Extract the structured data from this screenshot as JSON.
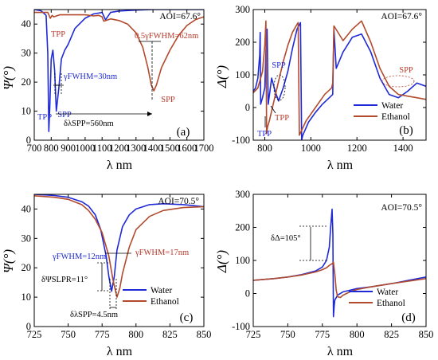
{
  "legend": {
    "water": "Water",
    "ethanol": "Ethanol"
  },
  "colors": {
    "water": "#1f2ad6",
    "ethanol": "#b24a2e",
    "annotation_red": "#b8392a",
    "annotation_blue": "#1f2ad6"
  },
  "chart_data": [
    {
      "id": "a",
      "type": "line",
      "panel_label": "(a)",
      "aoi": "AOI=67.6°",
      "ylabel": "Ψ(°)",
      "xlabel": "λ nm",
      "xlim": [
        700,
        1700
      ],
      "ylim": [
        0,
        45
      ],
      "xticks": [
        700,
        800,
        900,
        1000,
        1100,
        1200,
        1300,
        1400,
        1500,
        1600,
        1700
      ],
      "yticks": [
        0,
        10,
        20,
        30,
        40
      ],
      "annotations": {
        "tpp_top": "TPP",
        "tpp_bottom": "TPP",
        "spp_bottom": "SPP",
        "spp_right": "SPP",
        "fwhm_water": "γFWHM=30nm",
        "fwhm_ethanol": "0.5γFWHM=62nm",
        "delta_lambda": "δλSPP=560nm"
      },
      "series": [
        {
          "name": "Water",
          "x": [
            700,
            740,
            770,
            780,
            786,
            792,
            800,
            810,
            820,
            830,
            845,
            860,
            880,
            900,
            940,
            1000,
            1050,
            1100,
            1120,
            1150,
            1200,
            1300,
            1400,
            1500,
            1600,
            1700
          ],
          "y": [
            45,
            44.6,
            43,
            30,
            3,
            12,
            28,
            31,
            24,
            10,
            18,
            28,
            31,
            33,
            38.5,
            42,
            43.5,
            44,
            41.5,
            44,
            44.5,
            44.8,
            45,
            45,
            45,
            45
          ]
        },
        {
          "name": "Ethanol",
          "x": [
            700,
            780,
            795,
            805,
            815,
            850,
            900,
            1000,
            1050,
            1080,
            1100,
            1110,
            1150,
            1200,
            1250,
            1300,
            1340,
            1370,
            1390,
            1405,
            1420,
            1450,
            1500,
            1550,
            1600,
            1650,
            1700
          ],
          "y": [
            44,
            44,
            42,
            43,
            42.5,
            43.2,
            43.2,
            43.2,
            42.8,
            43,
            42.5,
            41,
            41.8,
            41.2,
            40,
            37,
            32,
            25,
            19,
            17,
            19,
            25,
            31,
            36,
            39.5,
            41.5,
            42.5
          ]
        }
      ]
    },
    {
      "id": "b",
      "type": "line",
      "panel_label": "(b)",
      "aoi": "AOI=67.6°",
      "ylabel": "Δ(°)",
      "xlabel": "λ nm",
      "xlim": [
        750,
        1500
      ],
      "ylim": [
        -100,
        300
      ],
      "xticks": [
        800,
        1000,
        1200,
        1400
      ],
      "yticks": [
        -100,
        0,
        100,
        200,
        300
      ],
      "annotations": {
        "tpp": "TPP",
        "spp_b": "SPP",
        "tpp_red": "TPP",
        "spp_red": "SPP"
      },
      "series": [
        {
          "name": "Water",
          "x": [
            750,
            760,
            770,
            778,
            780,
            782,
            790,
            800,
            805,
            810,
            815,
            830,
            845,
            860,
            880,
            900,
            920,
            940,
            955,
            960,
            965,
            990,
            1020,
            1050,
            1080,
            1095,
            1100,
            1110,
            1140,
            1180,
            1220,
            1260,
            1300,
            1340,
            1380,
            1420,
            1460,
            1500
          ],
          "y": [
            50,
            60,
            90,
            160,
            230,
            10,
            30,
            60,
            170,
            240,
            10,
            90,
            50,
            20,
            60,
            110,
            180,
            240,
            260,
            -100,
            -85,
            -45,
            -15,
            10,
            30,
            40,
            240,
            120,
            170,
            215,
            225,
            170,
            90,
            40,
            30,
            50,
            75,
            65
          ]
        },
        {
          "name": "Ethanol",
          "x": [
            750,
            770,
            790,
            800,
            805,
            808,
            812,
            820,
            840,
            860,
            880,
            900,
            920,
            940,
            945,
            950,
            980,
            1020,
            1060,
            1090,
            1095,
            1100,
            1140,
            1180,
            1220,
            1260,
            1300,
            1340,
            1380,
            1420,
            1460,
            1500
          ],
          "y": [
            45,
            60,
            110,
            190,
            265,
            -80,
            -60,
            -40,
            20,
            80,
            140,
            190,
            230,
            255,
            260,
            -85,
            -40,
            0,
            40,
            60,
            75,
            250,
            205,
            240,
            265,
            200,
            120,
            65,
            40,
            35,
            30,
            25
          ]
        }
      ]
    },
    {
      "id": "c",
      "type": "line",
      "panel_label": "(c)",
      "aoi": "AOI=70.5°",
      "ylabel": "Ψ(°)",
      "xlabel": "λ nm",
      "xlim": [
        725,
        850
      ],
      "ylim": [
        0,
        45
      ],
      "xticks": [
        725,
        750,
        775,
        800,
        825,
        850
      ],
      "yticks": [
        0,
        10,
        20,
        30,
        40
      ],
      "annotations": {
        "fwhm_water": "γFWHM=12nm",
        "fwhm_ethanol": "γFWHM=17nm",
        "delta_psi": "δΨSLPR=11°",
        "delta_lambda": "δλSPP=4.5nm"
      },
      "series": [
        {
          "name": "Water",
          "x": [
            725,
            740,
            750,
            760,
            765,
            770,
            774,
            778,
            780,
            782,
            784,
            786,
            790,
            795,
            800,
            810,
            820,
            835,
            850
          ],
          "y": [
            45,
            44.6,
            44,
            42.5,
            41,
            38,
            33,
            24,
            17,
            12,
            17,
            26,
            34,
            38,
            40,
            41.5,
            41.8,
            41.5,
            40.8
          ]
        },
        {
          "name": "Ethanol",
          "x": [
            725,
            740,
            750,
            760,
            765,
            770,
            775,
            780,
            783,
            786,
            788,
            790,
            795,
            800,
            810,
            820,
            835,
            850
          ],
          "y": [
            44.5,
            44,
            43.3,
            41.5,
            39.5,
            36.5,
            32,
            24,
            16,
            10,
            13,
            18,
            27,
            33,
            37.5,
            39.5,
            40.5,
            40.8
          ]
        }
      ]
    },
    {
      "id": "d",
      "type": "line",
      "panel_label": "(d)",
      "aoi": "AOI=70.5°",
      "ylabel": "Δ(°)",
      "xlabel": "λ nm",
      "xlim": [
        725,
        850
      ],
      "ylim": [
        -100,
        300
      ],
      "xticks": [
        725,
        750,
        775,
        800,
        825,
        850
      ],
      "yticks": [
        -100,
        0,
        100,
        200,
        300
      ],
      "annotations": {
        "delta_delta": "δΔ=105°"
      },
      "series": [
        {
          "name": "Water",
          "x": [
            725,
            740,
            750,
            760,
            770,
            775,
            778,
            780,
            781,
            782,
            782.6,
            783,
            783.5,
            784,
            786,
            790,
            795,
            800,
            810,
            825,
            850
          ],
          "y": [
            40,
            45,
            50,
            57,
            68,
            80,
            100,
            140,
            200,
            255,
            180,
            -70,
            -40,
            -20,
            -5,
            5,
            10,
            15,
            20,
            30,
            50
          ]
        },
        {
          "name": "Ethanol",
          "x": [
            725,
            740,
            750,
            760,
            770,
            775,
            778,
            780,
            782,
            783,
            784,
            785,
            786,
            788,
            790,
            795,
            800,
            810,
            825,
            850
          ],
          "y": [
            40,
            45,
            50,
            56,
            65,
            72,
            78,
            85,
            90,
            95,
            60,
            10,
            -10,
            -12,
            -5,
            5,
            12,
            20,
            30,
            45
          ]
        }
      ]
    }
  ]
}
